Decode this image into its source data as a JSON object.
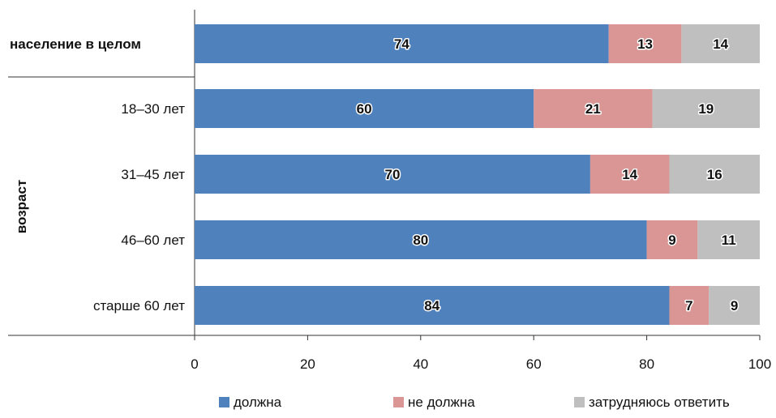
{
  "chart_data": {
    "type": "bar",
    "orientation": "horizontal",
    "stacked": true,
    "group_label": "возраст",
    "categories": [
      "население в целом",
      "18–30 лет",
      "31–45 лет",
      "46–60 лет",
      "старше 60 лет"
    ],
    "category_bold": [
      true,
      false,
      false,
      false,
      false
    ],
    "series": [
      {
        "name": "должна",
        "color": "#4f81bd",
        "values": [
          74,
          60,
          70,
          80,
          84
        ]
      },
      {
        "name": "не должна",
        "color": "#d99694",
        "values": [
          13,
          21,
          14,
          9,
          7
        ]
      },
      {
        "name": "затрудняюсь ответить",
        "color": "#bfbfbf",
        "values": [
          14,
          19,
          16,
          11,
          9
        ]
      }
    ],
    "xlim": [
      0,
      100
    ],
    "xticks": [
      "0",
      "20",
      "40",
      "60",
      "80",
      "100"
    ],
    "grid": false,
    "legend_position": "bottom"
  }
}
